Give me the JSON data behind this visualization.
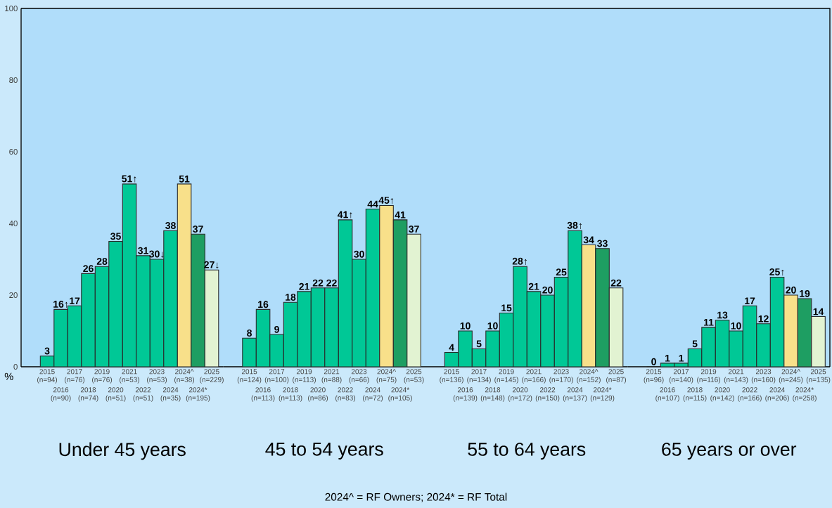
{
  "chart_data": [
    {
      "type": "bar",
      "ylabel": "%",
      "ylim": [
        0,
        100
      ],
      "yticks": [
        0,
        20,
        40,
        60,
        80,
        100
      ],
      "xlabel": "Under 45 years",
      "categories": [
        "2015 (n=94)",
        "2016 (n=90)",
        "2017 (n=76)",
        "2018 (n=74)",
        "2019 (n=76)",
        "2020 (n=51)",
        "2021 (n=53)",
        "2022 (n=51)",
        "2023 (n=53)",
        "2024 (n=35)",
        "2024^ (n=38)",
        "2024* (n=195)",
        "2025 (n=229)"
      ],
      "values": [
        3,
        16,
        17,
        26,
        28,
        35,
        51,
        31,
        30,
        38,
        51,
        37,
        27
      ],
      "value_labels": [
        "3",
        "16↑",
        "17",
        "26",
        "28",
        "35",
        "51↑",
        "31",
        "30↓",
        "38",
        "51",
        "37",
        "27↓"
      ],
      "colors": [
        "#00c896",
        "#00c896",
        "#00c896",
        "#00c896",
        "#00c896",
        "#00c896",
        "#00c896",
        "#00c896",
        "#00c896",
        "#00c896",
        "#f8e08a",
        "#1e9e62",
        "#e2f3d2"
      ],
      "annotations": [
        "2024^ = RF Owners;  2024* = RF Total"
      ]
    },
    {
      "type": "bar",
      "ylim": [
        0,
        100
      ],
      "tick_labels": "x",
      "xlabel": "45 to 54 years",
      "categories": [
        "2015 (n=124)",
        "2016 (n=113)",
        "2017 (n=100)",
        "2018 (n=113)",
        "2019 (n=113)",
        "2020 (n=86)",
        "2021 (n=88)",
        "2022 (n=83)",
        "2023 (n=66)",
        "2024 (n=72)",
        "2024^ (n=75)",
        "2024* (n=105)",
        "2025 (n=53)"
      ],
      "values": [
        8,
        16,
        9,
        18,
        21,
        22,
        22,
        41,
        30,
        44,
        45,
        41,
        37
      ],
      "value_labels": [
        "8",
        "16",
        "9",
        "18",
        "21",
        "22",
        "22",
        "41↑",
        "30",
        "44",
        "45↑",
        "41",
        "37"
      ],
      "colors": [
        "#00c896",
        "#00c896",
        "#00c896",
        "#00c896",
        "#00c896",
        "#00c896",
        "#00c896",
        "#00c896",
        "#00c896",
        "#00c896",
        "#f8e08a",
        "#1e9e62",
        "#e2f3d2"
      ]
    },
    {
      "type": "bar",
      "ylim": [
        0,
        100
      ],
      "tick_labels": "x",
      "xlabel": "55 to 64 years",
      "categories": [
        "2015 (n=136)",
        "2016 (n=139)",
        "2017 (n=134)",
        "2018 (n=148)",
        "2019 (n=145)",
        "2020 (n=172)",
        "2021 (n=166)",
        "2022 (n=150)",
        "2023 (n=170)",
        "2024 (n=137)",
        "2024^ (n=152)",
        "2024* (n=129)",
        "2025 (n=87)"
      ],
      "values": [
        4,
        10,
        5,
        10,
        15,
        28,
        21,
        20,
        25,
        38,
        34,
        33,
        22
      ],
      "value_labels": [
        "4",
        "10",
        "5",
        "10",
        "15",
        "28↑",
        "21",
        "20",
        "25",
        "38↑",
        "34",
        "33",
        "22"
      ],
      "colors": [
        "#00c896",
        "#00c896",
        "#00c896",
        "#00c896",
        "#00c896",
        "#00c896",
        "#00c896",
        "#00c896",
        "#00c896",
        "#00c896",
        "#f8e08a",
        "#1e9e62",
        "#e2f3d2"
      ]
    },
    {
      "type": "bar",
      "ylim": [
        0,
        100
      ],
      "tick_labels": "x",
      "xlabel": "65 years or over",
      "categories": [
        "2015 (n=96)",
        "2016 (n=107)",
        "2017 (n=140)",
        "2018 (n=115)",
        "2019 (n=116)",
        "2020 (n=142)",
        "2021 (n=143)",
        "2022 (n=166)",
        "2023 (n=160)",
        "2024 (n=206)",
        "2024^ (n=245)",
        "2024* (n=258)",
        "2025 (n=135)"
      ],
      "values": [
        0,
        1,
        1,
        5,
        11,
        13,
        10,
        17,
        12,
        25,
        20,
        19,
        14
      ],
      "value_labels": [
        "0",
        "1",
        "1",
        "5",
        "11",
        "13",
        "10",
        "17",
        "12",
        "25↑",
        "20",
        "19",
        "14"
      ],
      "colors": [
        "#00c896",
        "#00c896",
        "#00c896",
        "#00c896",
        "#00c896",
        "#00c896",
        "#00c896",
        "#00c896",
        "#00c896",
        "#00c896",
        "#f8e08a",
        "#1e9e62",
        "#e2f3d2"
      ]
    }
  ]
}
